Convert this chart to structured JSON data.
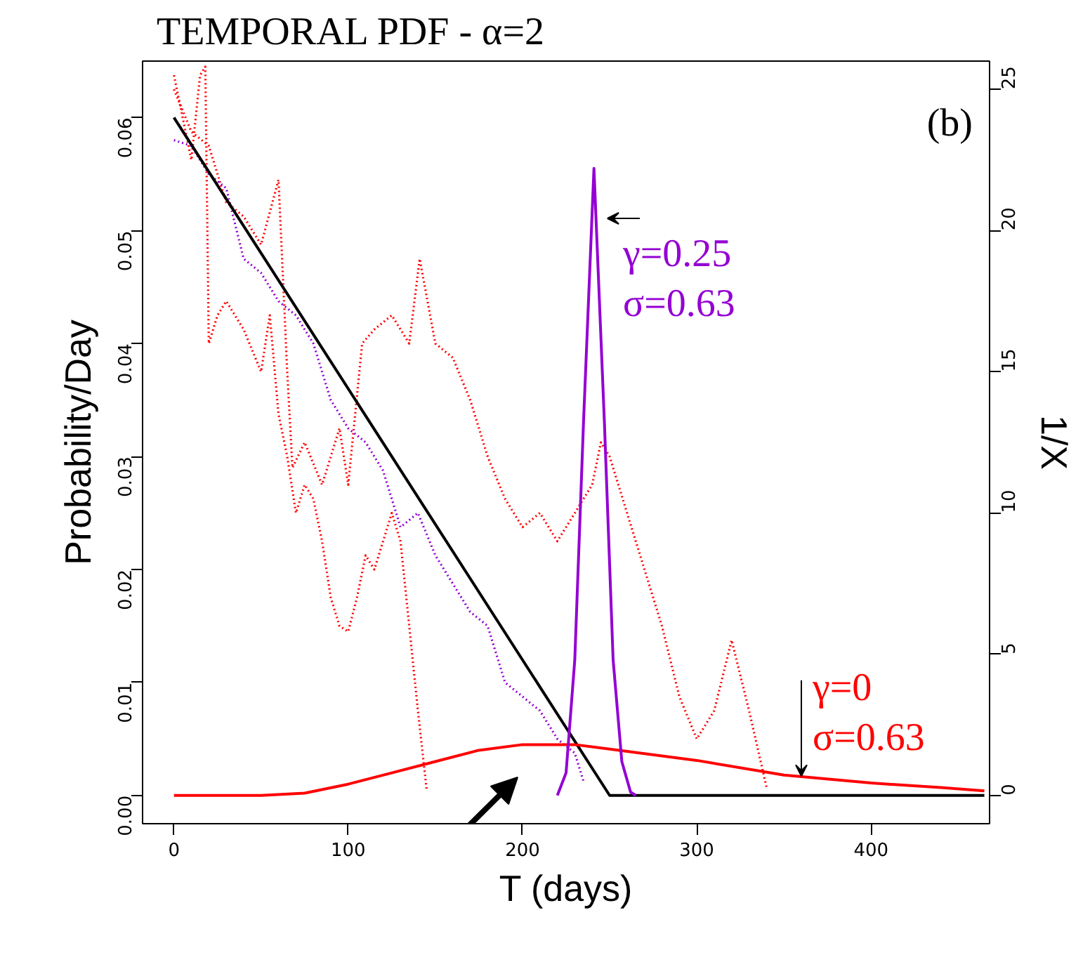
{
  "chart_data": {
    "type": "line",
    "title": "TEMPORAL PDF  - α=2",
    "xlabel": "T (days)",
    "ylabel": "Probability/Day",
    "y2label": "1/X",
    "xlim": [
      -18,
      468
    ],
    "xticks": [
      0,
      100,
      200,
      300,
      400
    ],
    "ylim": [
      -0.0025,
      0.065
    ],
    "yticks": [
      {
        "value": 0,
        "label": "0.00"
      },
      {
        "value": 0.01,
        "label": "0.01"
      },
      {
        "value": 0.02,
        "label": "0.02"
      },
      {
        "value": 0.03,
        "label": "0.03"
      },
      {
        "value": 0.04,
        "label": "0.04"
      },
      {
        "value": 0.05,
        "label": "0.05"
      },
      {
        "value": 0.06,
        "label": "0.06"
      }
    ],
    "y2lim": [
      -1,
      26
    ],
    "y2ticks": [
      0,
      5,
      10,
      15,
      20,
      25
    ],
    "grid": false,
    "series": [
      {
        "type": "line",
        "axis": "y2",
        "color": "#ff0000",
        "line_style": "dotted",
        "x": [
          0,
          5,
          10,
          15,
          18,
          20,
          25,
          30,
          40,
          50,
          55,
          60,
          65,
          70,
          75,
          80,
          85,
          90,
          95,
          100,
          105,
          110,
          115,
          120,
          125,
          130,
          135,
          140,
          145
        ],
        "values": [
          25.5,
          24,
          22.5,
          25.5,
          25.8,
          16,
          17,
          17.5,
          16.5,
          15,
          17,
          13.5,
          12,
          10,
          11,
          10.5,
          9,
          7,
          6,
          5.8,
          7,
          8.5,
          8,
          9,
          10,
          9,
          6,
          3,
          0.2
        ]
      },
      {
        "type": "line",
        "axis": "y2",
        "color": "#ff0000",
        "line_style": "dotted",
        "x": [
          0,
          10,
          20,
          30,
          40,
          50,
          60,
          65,
          68,
          75,
          85,
          95,
          100,
          108,
          115,
          125,
          135,
          141,
          150,
          160,
          170,
          180,
          190,
          200,
          210,
          220,
          230,
          240,
          245,
          250,
          260,
          270,
          280,
          290,
          300,
          310,
          320,
          330,
          340
        ],
        "values": [
          25,
          23.5,
          23,
          21,
          20.5,
          19.5,
          21.8,
          15,
          11.6,
          12.5,
          11,
          13,
          11,
          16,
          16.5,
          17,
          16,
          19,
          16,
          15.5,
          14,
          12,
          10.5,
          9.5,
          10,
          9,
          10,
          11,
          12.5,
          12,
          10,
          8,
          6,
          3.5,
          2,
          3,
          5.5,
          3,
          0.3
        ]
      },
      {
        "type": "line",
        "axis": "y2",
        "color": "#9400d3",
        "line_style": "dotted",
        "x": [
          0,
          10,
          20,
          30,
          40,
          50,
          60,
          70,
          80,
          90,
          100,
          110,
          120,
          130,
          140,
          150,
          160,
          170,
          180,
          190,
          200,
          210,
          220,
          230,
          235
        ],
        "values": [
          23.2,
          23,
          22,
          21.5,
          19,
          18.5,
          17.5,
          17,
          16,
          14,
          13,
          12.5,
          11.5,
          9.5,
          10,
          8.5,
          7.5,
          6.5,
          6,
          4,
          3.5,
          3,
          2,
          1.5,
          0.5
        ]
      },
      {
        "axis": "y2",
        "color": "#000000",
        "line_style": "solid",
        "x": [
          0,
          250,
          465
        ],
        "values": [
          24,
          0,
          0
        ]
      },
      {
        "type": "line",
        "axis": "y",
        "color": "#ff0000",
        "line_style": "solid",
        "x": [
          0,
          50,
          75,
          100,
          125,
          150,
          175,
          200,
          230,
          250,
          300,
          350,
          400,
          440,
          465
        ],
        "values": [
          0,
          0,
          0.0002,
          0.001,
          0.002,
          0.003,
          0.004,
          0.0045,
          0.0045,
          0.0041,
          0.0031,
          0.0018,
          0.0011,
          0.0007,
          0.0004
        ]
      },
      {
        "type": "line",
        "axis": "y",
        "color": "#9400d3",
        "line_style": "solid",
        "x": [
          220,
          225,
          230,
          235,
          241,
          247,
          252,
          257,
          262,
          265
        ],
        "values": [
          0,
          0.002,
          0.012,
          0.033,
          0.0555,
          0.033,
          0.012,
          0.003,
          0.0003,
          0
        ]
      }
    ],
    "annotations": [
      "(b)",
      "γ=0.25\nσ=0.63",
      {
        "text": "γ=0\nσ=0.63",
        "x": 360,
        "y": 0.0017
      }
    ]
  }
}
